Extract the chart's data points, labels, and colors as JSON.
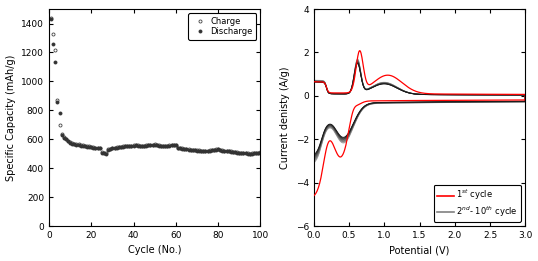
{
  "left": {
    "xlabel": "Cycle (No.)",
    "ylabel": "Specific Capacity (mAh/g)",
    "xlim": [
      0,
      100
    ],
    "ylim": [
      0,
      1500
    ],
    "yticks": [
      0,
      200,
      400,
      600,
      800,
      1000,
      1200,
      1400
    ],
    "xticks": [
      0,
      20,
      40,
      60,
      80,
      100
    ],
    "charge_cycles": [
      1,
      2,
      3,
      4,
      5,
      6,
      7,
      8,
      9,
      10,
      11,
      12,
      13,
      14,
      15,
      16,
      17,
      18,
      19,
      20,
      21,
      22,
      23,
      24,
      25,
      26,
      27,
      28,
      29,
      30,
      31,
      32,
      33,
      34,
      35,
      36,
      37,
      38,
      39,
      40,
      41,
      42,
      43,
      44,
      45,
      46,
      47,
      48,
      49,
      50,
      51,
      52,
      53,
      54,
      55,
      56,
      57,
      58,
      59,
      60,
      61,
      62,
      63,
      64,
      65,
      66,
      67,
      68,
      69,
      70,
      71,
      72,
      73,
      74,
      75,
      76,
      77,
      78,
      79,
      80,
      81,
      82,
      83,
      84,
      85,
      86,
      87,
      88,
      89,
      90,
      91,
      92,
      93,
      94,
      95,
      96,
      97,
      98,
      99,
      100
    ],
    "charge_values": [
      1440,
      1330,
      1215,
      870,
      700,
      635,
      615,
      605,
      590,
      580,
      575,
      570,
      568,
      565,
      560,
      558,
      555,
      552,
      550,
      548,
      545,
      542,
      540,
      538,
      510,
      507,
      505,
      530,
      535,
      540,
      542,
      544,
      545,
      548,
      550,
      552,
      553,
      555,
      556,
      558,
      560,
      558,
      556,
      555,
      556,
      558,
      560,
      562,
      563,
      565,
      560,
      558,
      556,
      554,
      555,
      556,
      558,
      560,
      561,
      562,
      540,
      538,
      536,
      534,
      532,
      530,
      528,
      526,
      525,
      524,
      523,
      522,
      521,
      520,
      522,
      524,
      526,
      528,
      530,
      532,
      525,
      524,
      522,
      520,
      518,
      516,
      514,
      512,
      510,
      508,
      506,
      505,
      504,
      502,
      500,
      502,
      504,
      506,
      508,
      510
    ],
    "discharge_cycles": [
      1,
      2,
      3,
      4,
      5,
      6,
      7,
      8,
      9,
      10,
      11,
      12,
      13,
      14,
      15,
      16,
      17,
      18,
      19,
      20,
      21,
      22,
      23,
      24,
      25,
      26,
      27,
      28,
      29,
      30,
      31,
      32,
      33,
      34,
      35,
      36,
      37,
      38,
      39,
      40,
      41,
      42,
      43,
      44,
      45,
      46,
      47,
      48,
      49,
      50,
      51,
      52,
      53,
      54,
      55,
      56,
      57,
      58,
      59,
      60,
      61,
      62,
      63,
      64,
      65,
      66,
      67,
      68,
      69,
      70,
      71,
      72,
      73,
      74,
      75,
      76,
      77,
      78,
      79,
      80,
      81,
      82,
      83,
      84,
      85,
      86,
      87,
      88,
      89,
      90,
      91,
      92,
      93,
      94,
      95,
      96,
      97,
      98,
      99,
      100
    ],
    "discharge_values": [
      1430,
      1260,
      1135,
      855,
      780,
      630,
      610,
      600,
      585,
      575,
      570,
      565,
      563,
      560,
      556,
      554,
      551,
      549,
      547,
      545,
      542,
      540,
      538,
      536,
      505,
      502,
      500,
      527,
      532,
      537,
      540,
      542,
      543,
      546,
      548,
      550,
      551,
      553,
      554,
      556,
      558,
      556,
      554,
      553,
      554,
      556,
      558,
      560,
      561,
      563,
      558,
      556,
      554,
      552,
      553,
      554,
      556,
      558,
      559,
      560,
      538,
      536,
      534,
      532,
      530,
      528,
      526,
      524,
      523,
      522,
      521,
      520,
      519,
      518,
      520,
      522,
      524,
      526,
      528,
      530,
      523,
      522,
      520,
      518,
      516,
      514,
      512,
      510,
      508,
      506,
      504,
      503,
      502,
      500,
      498,
      500,
      502,
      504,
      506,
      508
    ]
  },
  "right": {
    "xlabel": "Potential (V)",
    "ylabel": "Current denisty (A/g)",
    "xlim": [
      0,
      3.0
    ],
    "ylim": [
      -6,
      4
    ],
    "yticks": [
      -6,
      -4,
      -2,
      0,
      2,
      4
    ],
    "xticks": [
      0.0,
      0.5,
      1.0,
      1.5,
      2.0,
      2.5,
      3.0
    ],
    "legend_1st": "1$^{st}$ cycle",
    "legend_2nd": "2$^{nd}$- 10$^{th}$ cycle"
  },
  "legend_charge": "Charge",
  "legend_discharge": "Discharge",
  "bg_color": "#ffffff"
}
